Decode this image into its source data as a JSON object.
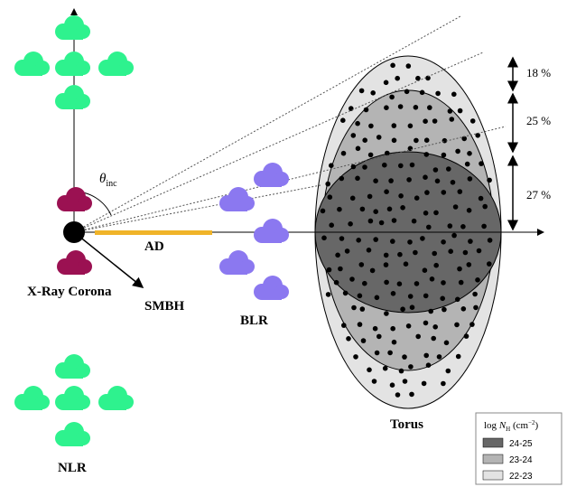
{
  "labels": {
    "corona": "X-Ray Corona",
    "smbh": "SMBH",
    "ad": "AD",
    "blr": "BLR",
    "nlr": "NLR",
    "torus": "Torus",
    "theta": {
      "symbol": "θ",
      "subscript": "inc"
    }
  },
  "fractions": [
    "18 %",
    "25 %",
    "27 %"
  ],
  "legend": {
    "title": {
      "prefix": "log ",
      "symbol": "N",
      "subscript": "H",
      "unit": " (cm",
      "superscript": "−2",
      "close": ")"
    },
    "entries": [
      "24-25",
      "23-24",
      "22-23"
    ]
  }
}
